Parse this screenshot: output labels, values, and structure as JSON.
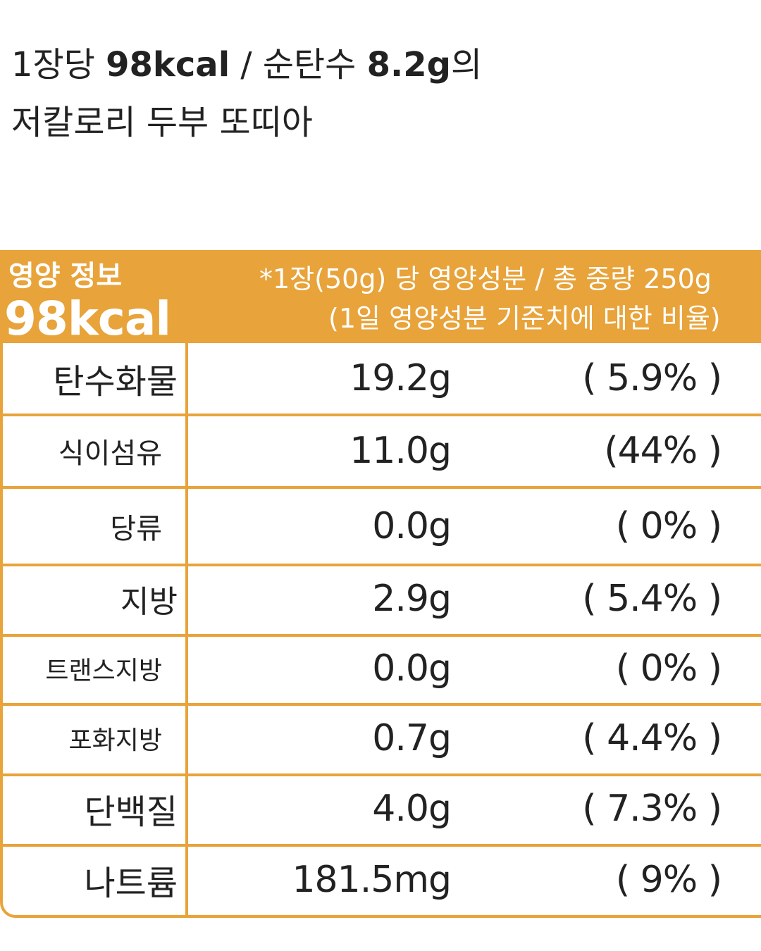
{
  "title": {
    "line1": [
      "1장당 ",
      "98kcal",
      " / 순탄수 ",
      "8.2g",
      "의"
    ],
    "line2": "저칼로리 두부 또띠아"
  },
  "table": {
    "header": {
      "label": "영양 정보",
      "calories": "98kcal",
      "note1": "*1장(50g) 당 영양성분 / 총 중량 250g",
      "note2": "(1일 영양성분 기준치에 대한 비율)"
    },
    "rows": [
      [
        "탄수화물",
        "19.2g",
        "( 5.9% )"
      ],
      [
        "식이섬유",
        "11.0g",
        "(44% )"
      ],
      [
        "당류",
        "0.0g",
        "( 0% )"
      ],
      [
        "지방",
        "2.9g",
        "( 5.4% )"
      ],
      [
        "트랜스지방",
        "0.0g",
        "( 0% )"
      ],
      [
        "포화지방",
        "0.7g",
        "( 4.4% )"
      ],
      [
        "단백질",
        "4.0g",
        "( 7.3% )"
      ],
      [
        "나트륨",
        "181.5mg",
        "( 9% )"
      ]
    ]
  }
}
